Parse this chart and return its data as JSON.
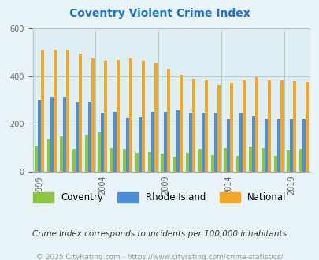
{
  "title": "Coventry Violent Crime Index",
  "title_color": "#1874cd",
  "subtitle": "Crime Index corresponds to incidents per 100,000 inhabitants",
  "footer": "© 2025 CityRating.com - https://www.cityrating.com/crime-statistics/",
  "years": [
    1999,
    2000,
    2001,
    2002,
    2003,
    2004,
    2005,
    2006,
    2007,
    2008,
    2009,
    2010,
    2011,
    2012,
    2013,
    2014,
    2015,
    2016,
    2017,
    2018,
    2019,
    2020
  ],
  "coventry": [
    110,
    135,
    148,
    95,
    155,
    165,
    100,
    95,
    80,
    82,
    75,
    62,
    78,
    95,
    68,
    100,
    65,
    105,
    100,
    65,
    90,
    95
  ],
  "rhode_island": [
    300,
    315,
    315,
    290,
    295,
    247,
    250,
    225,
    228,
    252,
    252,
    258,
    248,
    248,
    243,
    220,
    245,
    233,
    220,
    220,
    222,
    222
  ],
  "national": [
    510,
    512,
    510,
    495,
    475,
    465,
    470,
    475,
    465,
    455,
    430,
    405,
    390,
    387,
    362,
    373,
    383,
    395,
    383,
    383,
    380,
    375
  ],
  "ylim": [
    0,
    600
  ],
  "yticks": [
    0,
    200,
    400,
    600
  ],
  "bar_width": 0.26,
  "coventry_color": "#8dc63f",
  "rhode_island_color": "#4a90d9",
  "national_color": "#f5a623",
  "bg_color": "#e8f4f8",
  "grid_color": "#bbcccc",
  "plot_bg": "#ddeef4",
  "tick_label_years": [
    1999,
    2004,
    2009,
    2014,
    2019
  ]
}
